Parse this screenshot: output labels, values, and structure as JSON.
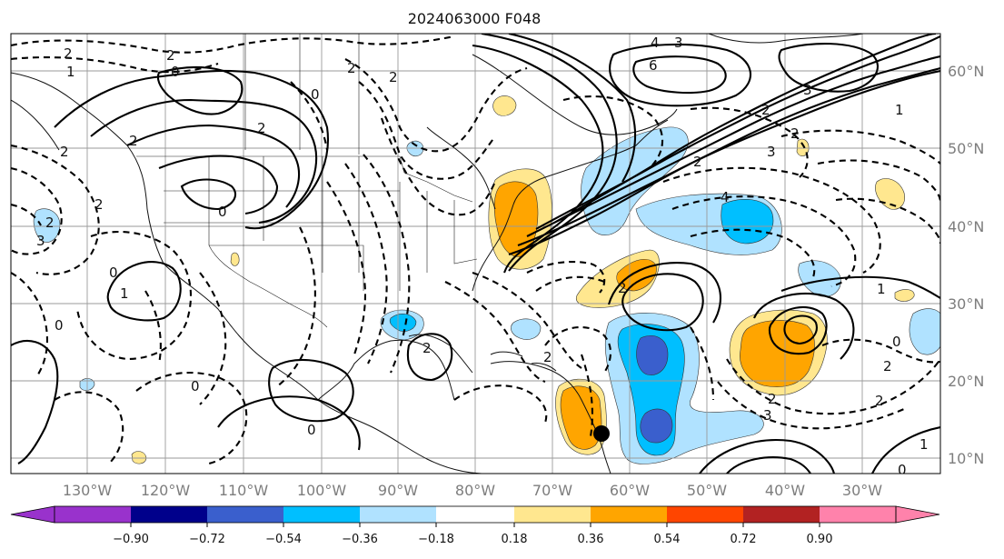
{
  "title": "2024063000 F048",
  "lon_ticks": [
    "130°W",
    "120°W",
    "110°W",
    "100°W",
    "90°W",
    "80°W",
    "70°W",
    "60°W",
    "50°W",
    "40°W",
    "30°W"
  ],
  "lat_ticks": [
    "60°N",
    "50°N",
    "40°N",
    "30°N",
    "20°N",
    "10°N"
  ],
  "colorbar": {
    "ticks": [
      "−0.90",
      "−0.72",
      "−0.54",
      "−0.36",
      "−0.18",
      "0.18",
      "0.36",
      "0.54",
      "0.72",
      "0.90"
    ],
    "colors": {
      "under": "#9932cc",
      "c1": "#00008b",
      "c2": "#3a5fcd",
      "c3": "#00bfff",
      "c4": "#b0e2ff",
      "c5": "#ffffff",
      "c6": "#ffe78f",
      "c7": "#ffa500",
      "c8": "#ff4500",
      "c9": "#b22222",
      "over": "#ff82ab"
    }
  },
  "contour_labels": {
    "l1": "2",
    "l2": "2",
    "l3": "1",
    "l4": "0",
    "l5": "0",
    "l6": "2",
    "l7": "2",
    "l8": "4",
    "l9": "3",
    "l10": "6",
    "l11": "3",
    "l12": "2",
    "l13": "3",
    "l14": "2",
    "l15": "1",
    "l16": "4",
    "l17": "2",
    "l18": "2",
    "l19": "2",
    "l20": "0",
    "l21": "2",
    "l22": "0",
    "l23": "3",
    "l24": "2",
    "l25": "2",
    "l26": "2",
    "l27": "0",
    "l28": "1",
    "l29": "0",
    "l30": "2",
    "l31": "0",
    "l32": "2",
    "l33": "0",
    "l34": "1",
    "l35": "2",
    "l36": "0",
    "l37": "1",
    "l38": "2",
    "l39": "3",
    "l40": "2"
  },
  "marker": {
    "name": "storm-position-marker"
  }
}
